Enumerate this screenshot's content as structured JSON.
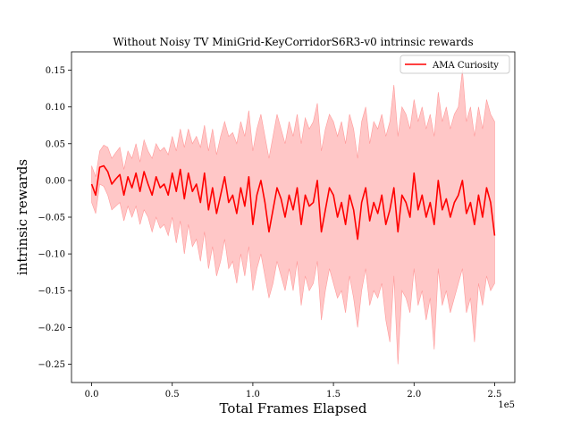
{
  "chart_data": {
    "type": "line",
    "title": "Without Noisy TV MiniGrid-KeyCorridorS6R3-v0 intrinsic rewards",
    "xlabel": "Total Frames Elapsed",
    "ylabel": "intrinsic rewards",
    "x_offset_text": "1e5",
    "xlim": [
      -12500,
      262500
    ],
    "ylim": [
      -0.275,
      0.175
    ],
    "xticks": [
      0,
      50000,
      100000,
      150000,
      200000,
      250000
    ],
    "xtick_labels": [
      "0.0",
      "0.5",
      "1.0",
      "1.5",
      "2.0",
      "2.5"
    ],
    "yticks": [
      -0.25,
      -0.2,
      -0.15,
      -0.1,
      -0.05,
      0.0,
      0.05,
      0.1,
      0.15
    ],
    "ytick_labels": [
      "−0.25",
      "−0.20",
      "−0.15",
      "−0.10",
      "−0.05",
      "0.00",
      "0.05",
      "0.10",
      "0.15"
    ],
    "grid": false,
    "legend_position": "top-right",
    "series": [
      {
        "name": "AMA Curiosity",
        "color": "#ff0000",
        "band_color": "#ff9999",
        "x": [
          0,
          2500,
          5000,
          7500,
          10000,
          12500,
          15000,
          17500,
          20000,
          22500,
          25000,
          27500,
          30000,
          32500,
          35000,
          37500,
          40000,
          42500,
          45000,
          47500,
          50000,
          52500,
          55000,
          57500,
          60000,
          62500,
          65000,
          67500,
          70000,
          72500,
          75000,
          77500,
          80000,
          82500,
          85000,
          87500,
          90000,
          92500,
          95000,
          97500,
          100000,
          102500,
          105000,
          107500,
          110000,
          112500,
          115000,
          117500,
          120000,
          122500,
          125000,
          127500,
          130000,
          132500,
          135000,
          137500,
          140000,
          142500,
          145000,
          147500,
          150000,
          152500,
          155000,
          157500,
          160000,
          162500,
          165000,
          167500,
          170000,
          172500,
          175000,
          177500,
          180000,
          182500,
          185000,
          187500,
          190000,
          192500,
          195000,
          197500,
          200000,
          202500,
          205000,
          207500,
          210000,
          212500,
          215000,
          217500,
          220000,
          222500,
          225000,
          227500,
          230000,
          232500,
          235000,
          237500,
          240000,
          242500,
          245000,
          247500,
          250000
        ],
        "mean": [
          -0.005,
          -0.02,
          0.018,
          0.02,
          0.012,
          -0.005,
          0.002,
          0.008,
          -0.02,
          0.005,
          -0.01,
          0.01,
          -0.015,
          0.012,
          -0.005,
          -0.02,
          0.005,
          -0.01,
          -0.005,
          -0.02,
          0.01,
          -0.015,
          0.015,
          -0.025,
          0.01,
          -0.015,
          -0.005,
          -0.03,
          0.01,
          -0.04,
          -0.01,
          -0.045,
          -0.02,
          0.005,
          -0.03,
          -0.02,
          -0.045,
          -0.01,
          -0.035,
          0.005,
          -0.06,
          -0.02,
          0.0,
          -0.03,
          -0.07,
          -0.04,
          -0.01,
          -0.025,
          -0.05,
          -0.02,
          -0.04,
          -0.01,
          -0.06,
          -0.02,
          -0.035,
          -0.03,
          0.0,
          -0.07,
          -0.04,
          -0.01,
          -0.02,
          -0.05,
          -0.03,
          -0.06,
          -0.02,
          -0.04,
          -0.08,
          -0.03,
          -0.01,
          -0.055,
          -0.03,
          -0.045,
          -0.02,
          -0.06,
          -0.04,
          -0.01,
          -0.07,
          -0.02,
          -0.03,
          -0.05,
          0.01,
          -0.04,
          -0.02,
          -0.05,
          -0.03,
          -0.06,
          0.0,
          -0.04,
          -0.025,
          -0.05,
          -0.03,
          -0.02,
          0.0,
          -0.045,
          -0.03,
          -0.06,
          -0.02,
          -0.05,
          -0.01,
          -0.03,
          -0.075
        ],
        "lower": [
          -0.03,
          -0.045,
          -0.005,
          -0.008,
          -0.02,
          -0.04,
          -0.035,
          -0.03,
          -0.055,
          -0.035,
          -0.05,
          -0.035,
          -0.06,
          -0.04,
          -0.05,
          -0.07,
          -0.05,
          -0.065,
          -0.06,
          -0.075,
          -0.05,
          -0.085,
          -0.055,
          -0.1,
          -0.06,
          -0.09,
          -0.08,
          -0.11,
          -0.07,
          -0.12,
          -0.09,
          -0.13,
          -0.11,
          -0.08,
          -0.12,
          -0.11,
          -0.14,
          -0.1,
          -0.13,
          -0.09,
          -0.15,
          -0.12,
          -0.1,
          -0.13,
          -0.16,
          -0.14,
          -0.11,
          -0.13,
          -0.15,
          -0.12,
          -0.15,
          -0.11,
          -0.17,
          -0.13,
          -0.15,
          -0.14,
          -0.11,
          -0.19,
          -0.15,
          -0.12,
          -0.14,
          -0.16,
          -0.15,
          -0.18,
          -0.13,
          -0.16,
          -0.2,
          -0.15,
          -0.12,
          -0.17,
          -0.15,
          -0.16,
          -0.14,
          -0.19,
          -0.22,
          -0.13,
          -0.25,
          -0.15,
          -0.16,
          -0.18,
          -0.12,
          -0.17,
          -0.15,
          -0.19,
          -0.16,
          -0.23,
          -0.12,
          -0.17,
          -0.15,
          -0.18,
          -0.16,
          -0.14,
          -0.12,
          -0.18,
          -0.16,
          -0.22,
          -0.14,
          -0.17,
          -0.13,
          -0.15,
          -0.14
        ],
        "upper": [
          0.02,
          0.005,
          0.04,
          0.048,
          0.045,
          0.03,
          0.038,
          0.045,
          0.015,
          0.04,
          0.03,
          0.05,
          0.025,
          0.055,
          0.04,
          0.03,
          0.05,
          0.04,
          0.045,
          0.035,
          0.06,
          0.04,
          0.07,
          0.045,
          0.07,
          0.05,
          0.06,
          0.045,
          0.075,
          0.04,
          0.07,
          0.035,
          0.06,
          0.08,
          0.06,
          0.065,
          0.05,
          0.08,
          0.06,
          0.095,
          0.04,
          0.07,
          0.09,
          0.06,
          0.03,
          0.06,
          0.09,
          0.07,
          0.05,
          0.08,
          0.06,
          0.09,
          0.05,
          0.085,
          0.07,
          0.08,
          0.105,
          0.04,
          0.07,
          0.09,
          0.08,
          0.06,
          0.08,
          0.05,
          0.09,
          0.07,
          0.03,
          0.08,
          0.1,
          0.05,
          0.08,
          0.07,
          0.09,
          0.06,
          0.08,
          0.13,
          0.06,
          0.1,
          0.09,
          0.07,
          0.11,
          0.08,
          0.1,
          0.07,
          0.09,
          0.06,
          0.12,
          0.08,
          0.1,
          0.07,
          0.09,
          0.1,
          0.15,
          0.08,
          0.1,
          0.06,
          0.1,
          0.07,
          0.11,
          0.09,
          0.08
        ]
      }
    ]
  }
}
